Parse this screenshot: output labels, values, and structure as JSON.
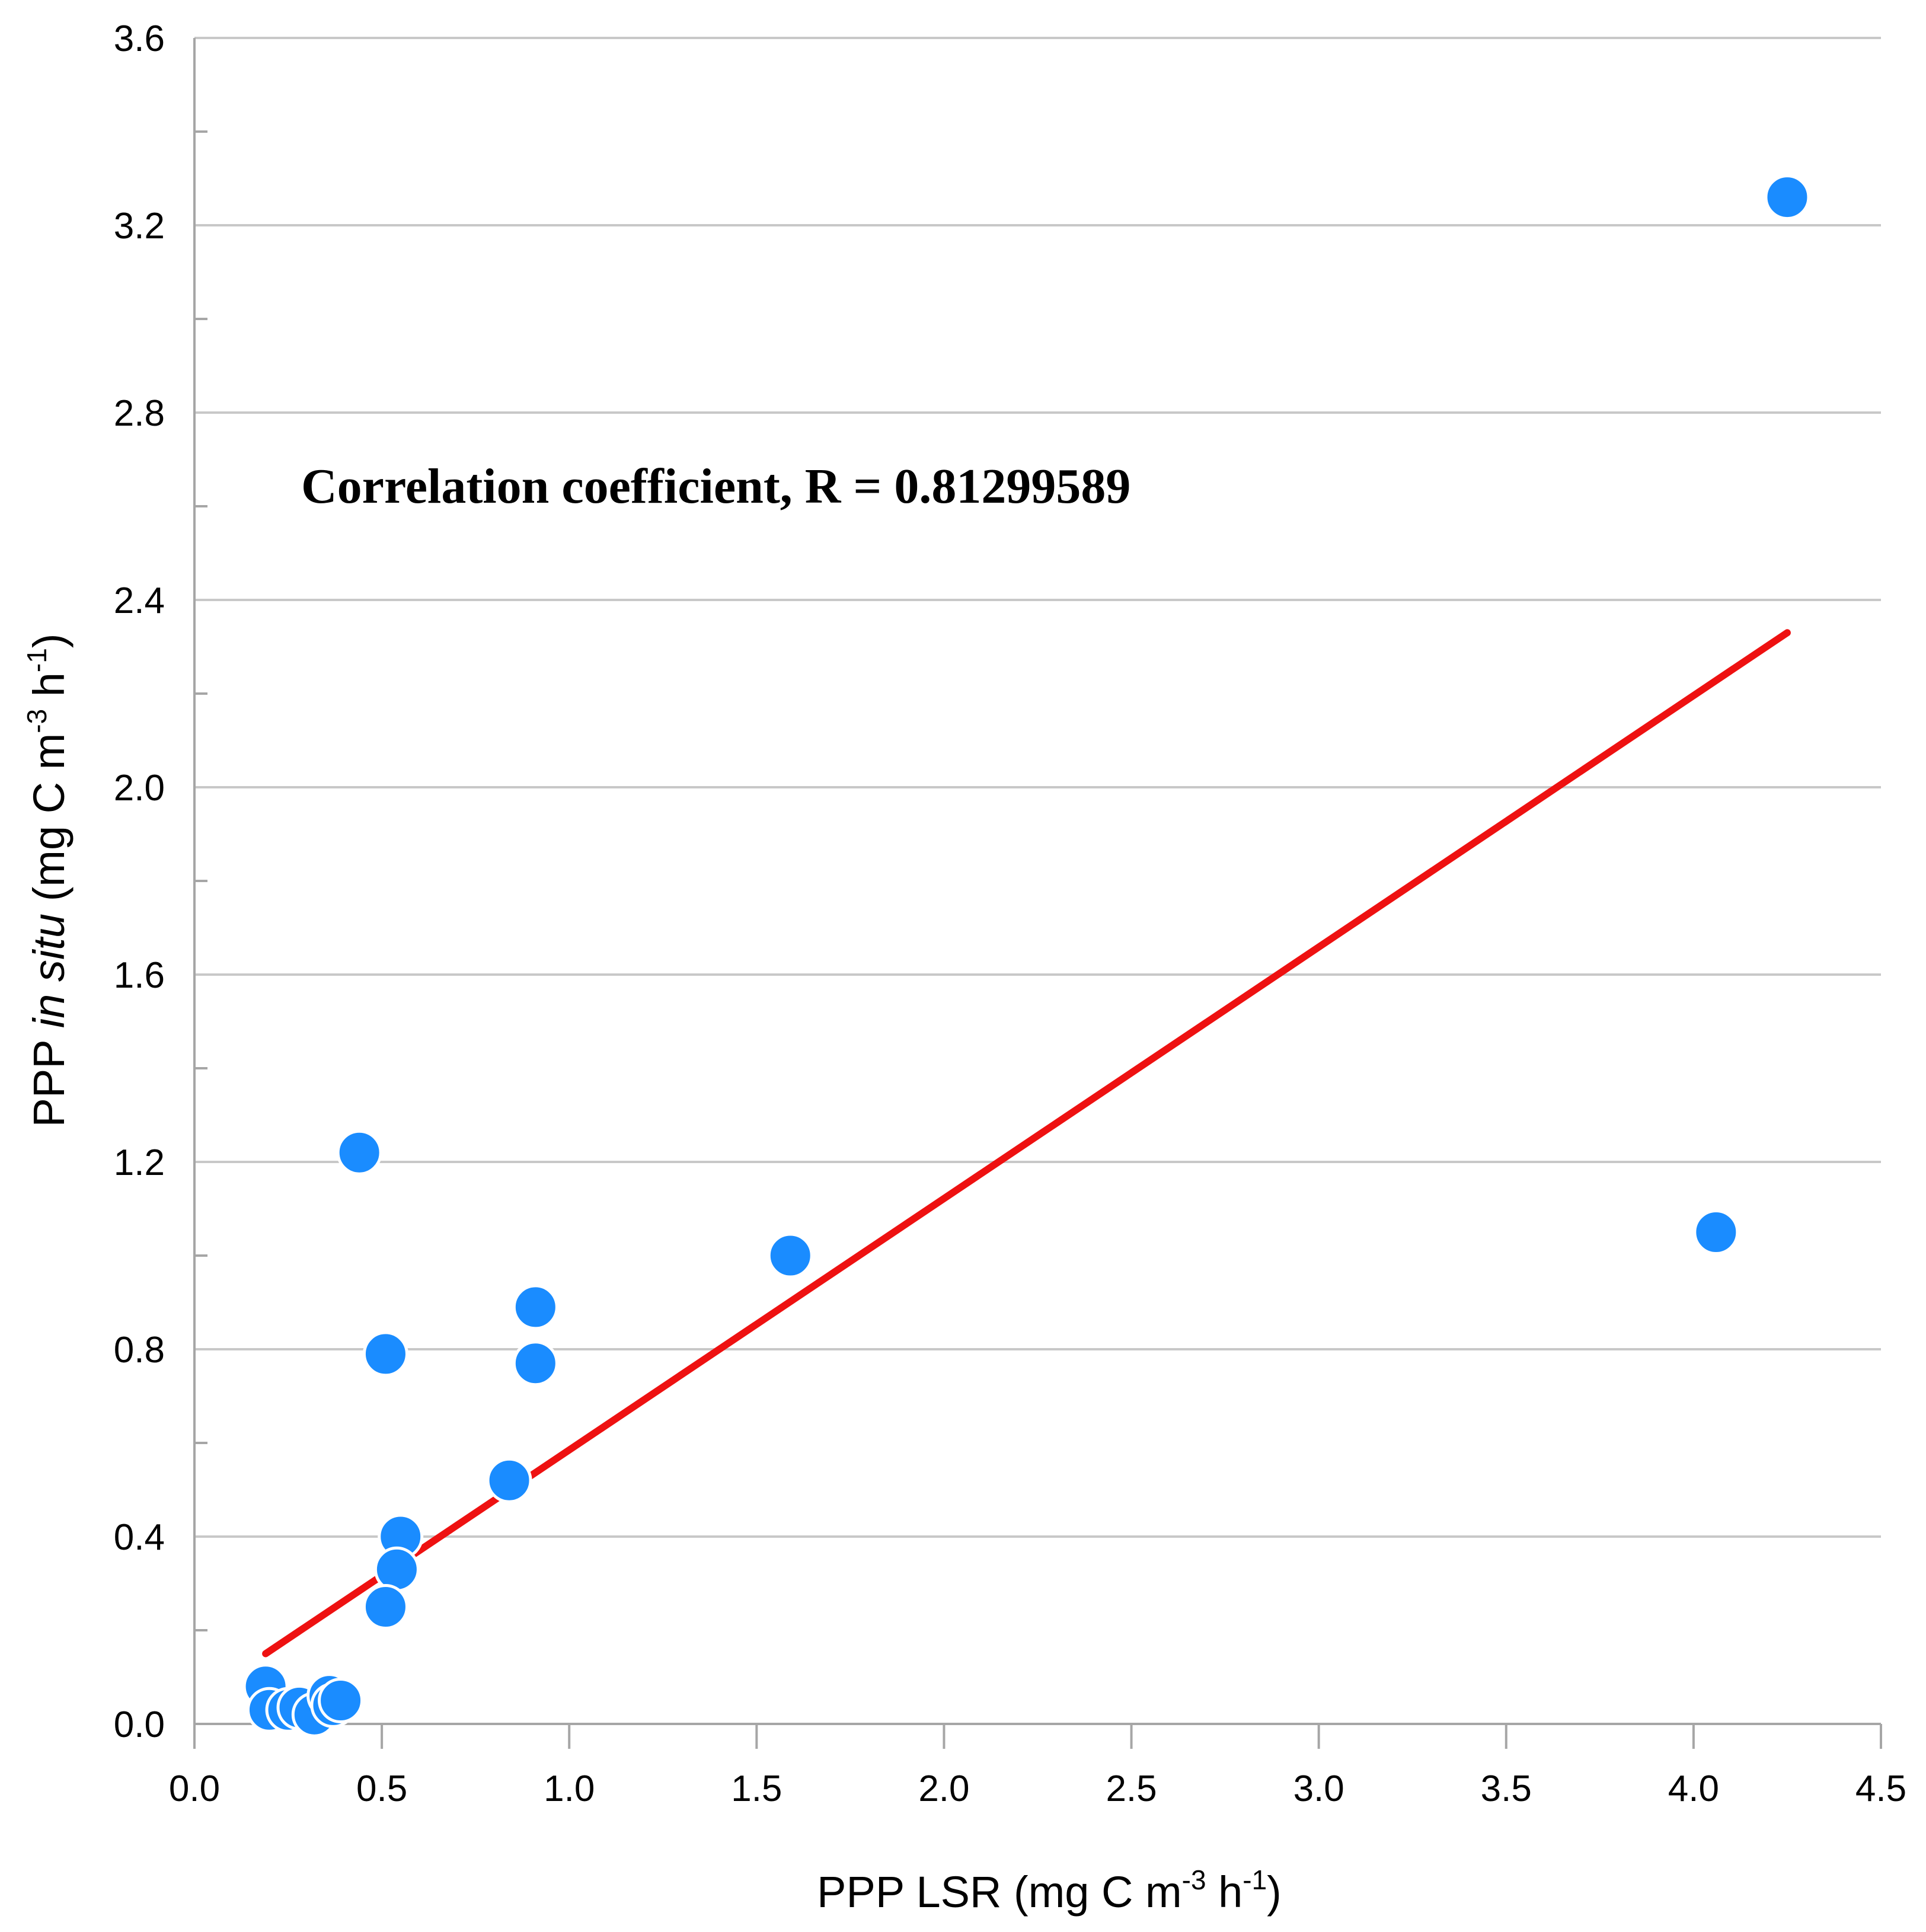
{
  "chart_data": {
    "type": "scatter",
    "title": "",
    "xlabel": "PPP  LSR (mg C m-3 h-1)",
    "ylabel": "PPP in situ (mg C m-3 h-1)",
    "xlabel_parts": [
      "PPP  LSR (mg C m",
      "-3",
      " h",
      "-1",
      ")"
    ],
    "ylabel_parts": [
      "PPP ",
      "in situ",
      " (mg C m",
      "-3",
      " h",
      "-1",
      ")"
    ],
    "xlim": [
      0.0,
      4.5
    ],
    "ylim": [
      0.0,
      3.6
    ],
    "xticks": [
      "0.0",
      "0.5",
      "1.0",
      "1.5",
      "2.0",
      "2.5",
      "3.0",
      "3.5",
      "4.0",
      "4.5"
    ],
    "yticks": [
      "0.0",
      "0.4",
      "0.8",
      "1.2",
      "1.6",
      "2.0",
      "2.4",
      "2.8",
      "3.2",
      "3.6"
    ],
    "grid": true,
    "annotation": "Correlation coefficient, R = 0.81299589",
    "point_color": "#1a8cff",
    "line_color": "#ee1111",
    "points": [
      {
        "x": 4.25,
        "y": 3.26
      },
      {
        "x": 4.06,
        "y": 1.05
      },
      {
        "x": 1.59,
        "y": 1.0
      },
      {
        "x": 0.91,
        "y": 0.89
      },
      {
        "x": 0.91,
        "y": 0.77
      },
      {
        "x": 0.44,
        "y": 1.22
      },
      {
        "x": 0.51,
        "y": 0.79
      },
      {
        "x": 0.84,
        "y": 0.52
      },
      {
        "x": 0.55,
        "y": 0.4
      },
      {
        "x": 0.54,
        "y": 0.33
      },
      {
        "x": 0.51,
        "y": 0.25
      },
      {
        "x": 0.19,
        "y": 0.08
      },
      {
        "x": 0.2,
        "y": 0.03
      },
      {
        "x": 0.25,
        "y": 0.03
      },
      {
        "x": 0.28,
        "y": 0.035
      },
      {
        "x": 0.32,
        "y": 0.02
      },
      {
        "x": 0.36,
        "y": 0.06
      },
      {
        "x": 0.37,
        "y": 0.04
      },
      {
        "x": 0.39,
        "y": 0.05
      }
    ],
    "regression_line": {
      "x1": 0.19,
      "y1": 0.15,
      "x2": 4.25,
      "y2": 2.33
    }
  }
}
